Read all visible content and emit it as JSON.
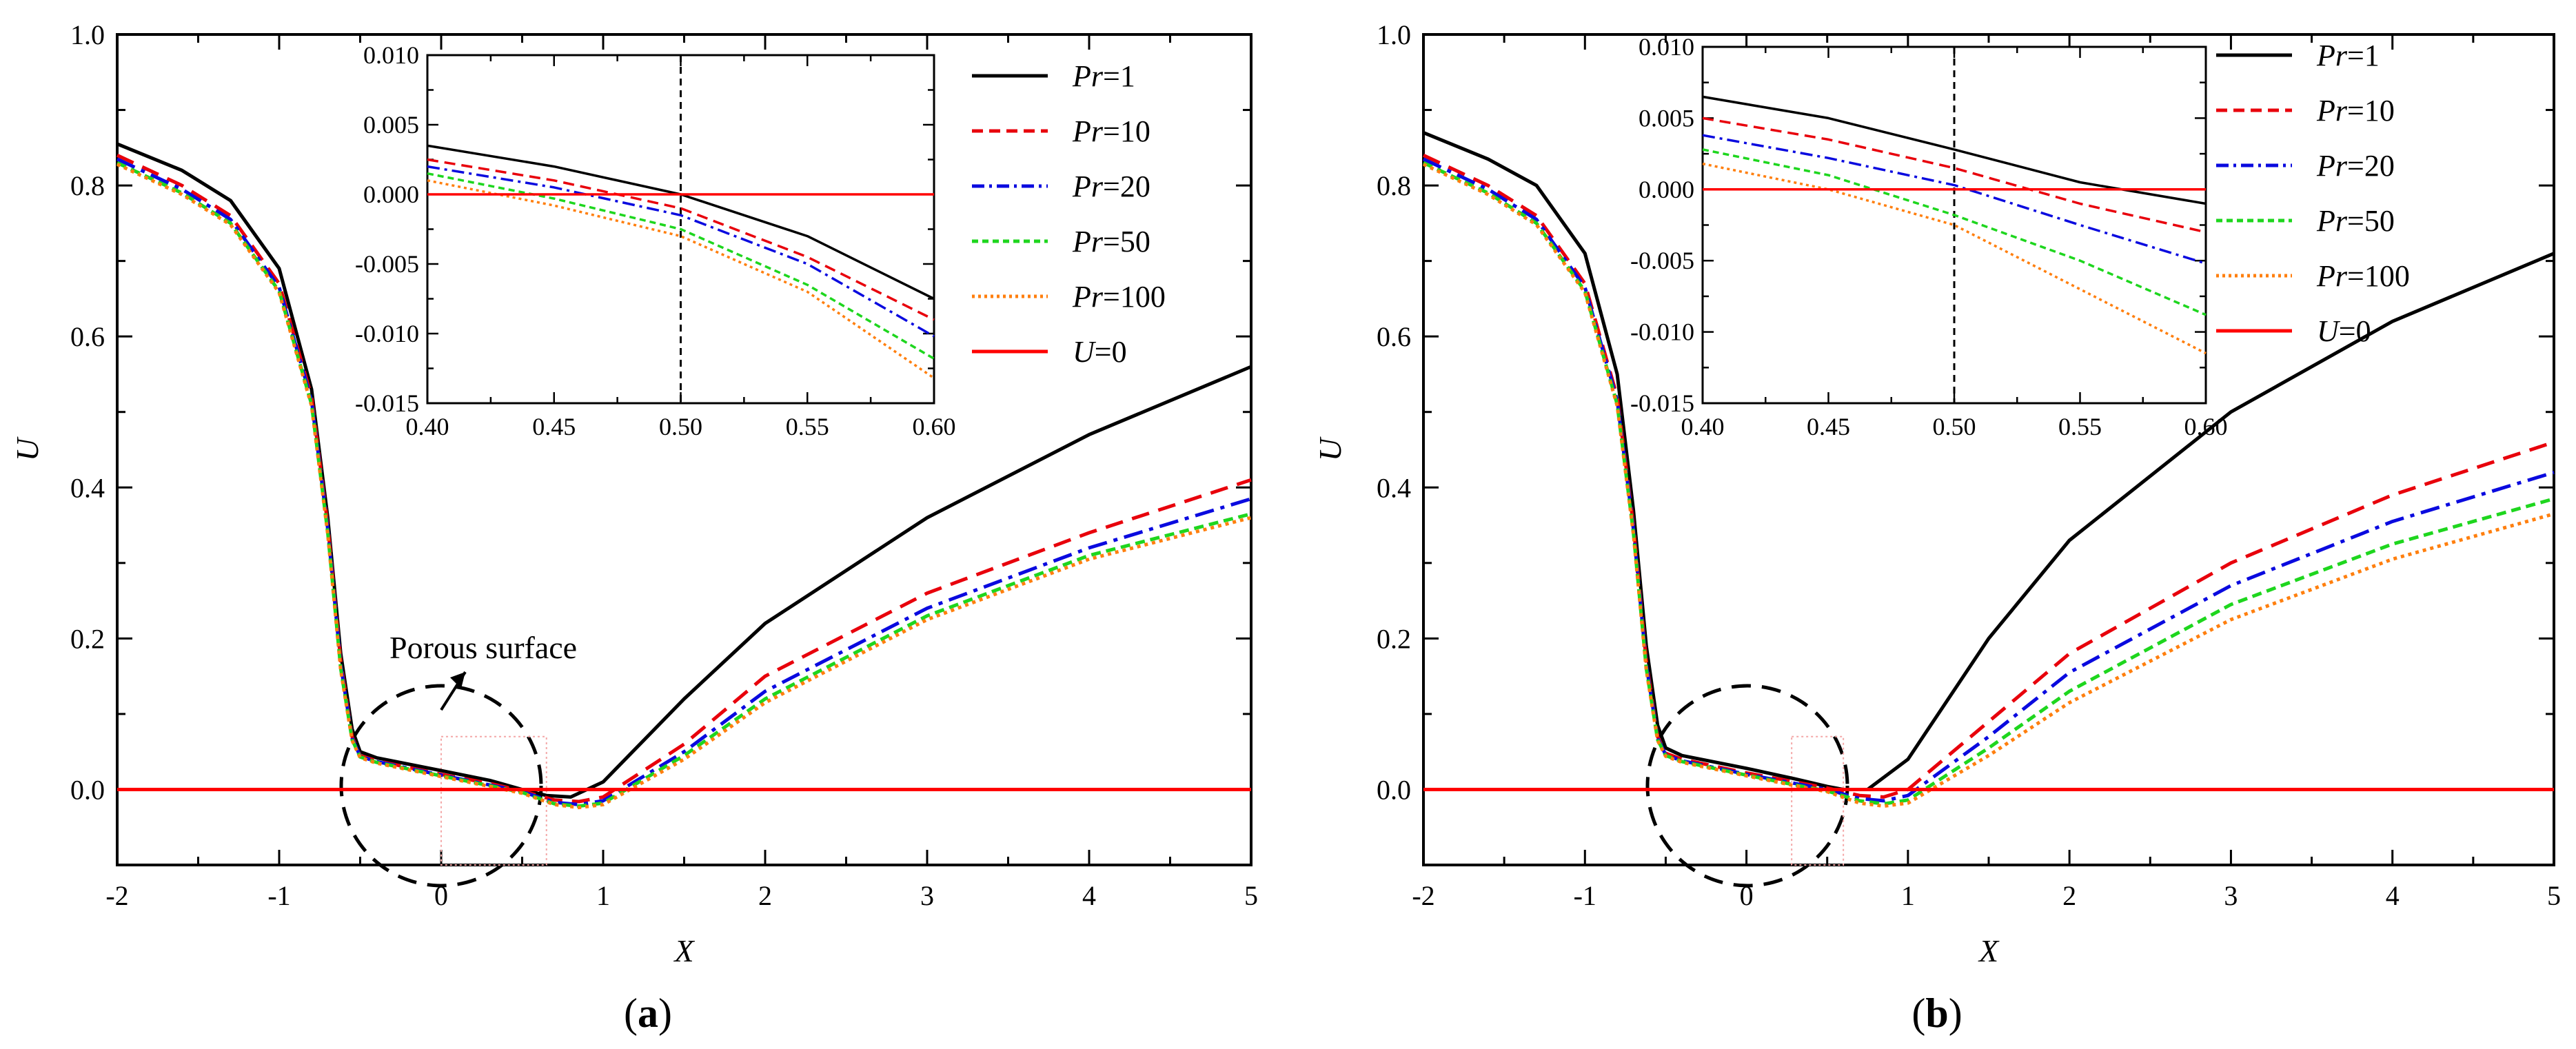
{
  "chart_data": [
    {
      "panel": "a",
      "type": "line",
      "panel_label": {
        "open": "(",
        "letter": "a",
        "close": ")"
      },
      "xlabel": "X",
      "ylabel": "U",
      "xlim": [
        -2,
        5
      ],
      "ylim": [
        -0.1,
        1.0
      ],
      "xticks": [
        "-2",
        "-1",
        "0",
        "1",
        "2",
        "3",
        "4",
        "5"
      ],
      "yticks": [
        "0.0",
        "0.2",
        "0.4",
        "0.6",
        "0.8",
        "1.0"
      ],
      "annotation": "Porous surface",
      "legend": {
        "position": "top-right",
        "entries": [
          {
            "prefix": "Pr",
            "suffix": "=1"
          },
          {
            "prefix": "Pr",
            "suffix": "=10"
          },
          {
            "prefix": "Pr",
            "suffix": "=20"
          },
          {
            "prefix": "Pr",
            "suffix": "=50"
          },
          {
            "prefix": "Pr",
            "suffix": "=100"
          },
          {
            "prefix": "U",
            "suffix": "=0"
          }
        ]
      },
      "series": [
        {
          "name": "Pr=1",
          "color": "#000000",
          "dash": "solid",
          "x": [
            -2,
            -1.6,
            -1.3,
            -1.0,
            -0.8,
            -0.7,
            -0.62,
            -0.55,
            -0.5,
            -0.4,
            0,
            0.3,
            0.5,
            0.65,
            0.8,
            1.0,
            1.5,
            2,
            3,
            4,
            5
          ],
          "y": [
            0.855,
            0.82,
            0.78,
            0.69,
            0.53,
            0.36,
            0.18,
            0.08,
            0.05,
            0.042,
            0.025,
            0.012,
            0.0,
            -0.008,
            -0.01,
            0.01,
            0.12,
            0.22,
            0.36,
            0.47,
            0.56
          ]
        },
        {
          "name": "Pr=10",
          "color": "#e8000b",
          "dash": "dashed",
          "x": [
            -2,
            -1.6,
            -1.3,
            -1.0,
            -0.8,
            -0.7,
            -0.62,
            -0.55,
            -0.5,
            -0.4,
            0,
            0.3,
            0.5,
            0.7,
            0.85,
            1.0,
            1.5,
            2,
            3,
            4,
            5
          ],
          "y": [
            0.84,
            0.8,
            0.76,
            0.67,
            0.52,
            0.35,
            0.17,
            0.07,
            0.045,
            0.038,
            0.02,
            0.008,
            -0.002,
            -0.014,
            -0.016,
            -0.01,
            0.06,
            0.15,
            0.26,
            0.34,
            0.41
          ]
        },
        {
          "name": "Pr=20",
          "color": "#0a0adf",
          "dash": "dashdot",
          "x": [
            -2,
            -1.6,
            -1.3,
            -1.0,
            -0.8,
            -0.7,
            -0.62,
            -0.55,
            -0.5,
            -0.4,
            0,
            0.3,
            0.5,
            0.7,
            0.85,
            1.0,
            1.5,
            2,
            3,
            4,
            5
          ],
          "y": [
            0.835,
            0.795,
            0.755,
            0.665,
            0.515,
            0.345,
            0.165,
            0.068,
            0.044,
            0.037,
            0.019,
            0.006,
            -0.003,
            -0.017,
            -0.02,
            -0.015,
            0.05,
            0.13,
            0.24,
            0.32,
            0.385
          ]
        },
        {
          "name": "Pr=50",
          "color": "#1ed61e",
          "dash": "dotted-dash",
          "x": [
            -2,
            -1.6,
            -1.3,
            -1.0,
            -0.8,
            -0.7,
            -0.62,
            -0.55,
            -0.5,
            -0.4,
            0,
            0.3,
            0.5,
            0.7,
            0.85,
            1.0,
            1.5,
            2,
            3,
            4,
            5
          ],
          "y": [
            0.83,
            0.79,
            0.75,
            0.66,
            0.51,
            0.34,
            0.16,
            0.066,
            0.043,
            0.036,
            0.018,
            0.005,
            -0.004,
            -0.019,
            -0.022,
            -0.018,
            0.045,
            0.12,
            0.23,
            0.31,
            0.365
          ]
        },
        {
          "name": "Pr=100",
          "color": "#ff7f0e",
          "dash": "dotted",
          "x": [
            -2,
            -1.6,
            -1.3,
            -1.0,
            -0.8,
            -0.7,
            -0.62,
            -0.55,
            -0.5,
            -0.4,
            0,
            0.3,
            0.5,
            0.7,
            0.85,
            1.0,
            1.5,
            2,
            3,
            4,
            5
          ],
          "y": [
            0.828,
            0.788,
            0.748,
            0.658,
            0.508,
            0.338,
            0.158,
            0.065,
            0.042,
            0.035,
            0.017,
            0.004,
            -0.005,
            -0.02,
            -0.024,
            -0.02,
            0.04,
            0.115,
            0.225,
            0.305,
            0.36
          ]
        },
        {
          "name": "U=0",
          "color": "#ff0000",
          "dash": "solid",
          "x": [
            -2,
            5
          ],
          "y": [
            0,
            0
          ]
        }
      ],
      "inset": {
        "xlim": [
          0.4,
          0.6
        ],
        "ylim": [
          -0.015,
          0.01
        ],
        "xticks": [
          "0.40",
          "0.45",
          "0.50",
          "0.55",
          "0.60"
        ],
        "yticks": [
          "0.010",
          "0.005",
          "0.000",
          "-0.005",
          "-0.010",
          "-0.015"
        ],
        "vline_x": 0.5,
        "series": [
          {
            "name": "Pr=1",
            "x": [
              0.4,
              0.45,
              0.5,
              0.55,
              0.6
            ],
            "y": [
              0.0035,
              0.002,
              0.0,
              -0.003,
              -0.0075
            ]
          },
          {
            "name": "Pr=10",
            "x": [
              0.4,
              0.45,
              0.5,
              0.55,
              0.6
            ],
            "y": [
              0.0025,
              0.001,
              -0.001,
              -0.0045,
              -0.009
            ]
          },
          {
            "name": "Pr=20",
            "x": [
              0.4,
              0.45,
              0.5,
              0.55,
              0.6
            ],
            "y": [
              0.002,
              0.0005,
              -0.0015,
              -0.005,
              -0.0102
            ]
          },
          {
            "name": "Pr=50",
            "x": [
              0.4,
              0.45,
              0.5,
              0.55,
              0.6
            ],
            "y": [
              0.0015,
              -0.0003,
              -0.0025,
              -0.0065,
              -0.0118
            ]
          },
          {
            "name": "Pr=100",
            "x": [
              0.4,
              0.45,
              0.5,
              0.55,
              0.6
            ],
            "y": [
              0.001,
              -0.0008,
              -0.003,
              -0.007,
              -0.0132
            ]
          },
          {
            "name": "U=0",
            "x": [
              0.4,
              0.6
            ],
            "y": [
              0,
              0
            ]
          }
        ]
      }
    },
    {
      "panel": "b",
      "type": "line",
      "panel_label": {
        "open": "(",
        "letter": "b",
        "close": ")"
      },
      "xlabel": "X",
      "ylabel": "U",
      "xlim": [
        -2,
        5
      ],
      "ylim": [
        -0.1,
        1.0
      ],
      "xticks": [
        "-2",
        "-1",
        "0",
        "1",
        "2",
        "3",
        "4",
        "5"
      ],
      "yticks": [
        "0.0",
        "0.2",
        "0.4",
        "0.6",
        "0.8",
        "1.0"
      ],
      "legend": {
        "position": "top-right",
        "entries": [
          {
            "prefix": "Pr",
            "suffix": "=1"
          },
          {
            "prefix": "Pr",
            "suffix": "=10"
          },
          {
            "prefix": "Pr",
            "suffix": "=20"
          },
          {
            "prefix": "Pr",
            "suffix": "=50"
          },
          {
            "prefix": "Pr",
            "suffix": "=100"
          },
          {
            "prefix": "U",
            "suffix": "=0"
          }
        ]
      },
      "series": [
        {
          "name": "Pr=1",
          "color": "#000000",
          "dash": "solid",
          "x": [
            -2,
            -1.6,
            -1.3,
            -1.0,
            -0.8,
            -0.7,
            -0.62,
            -0.55,
            -0.5,
            -0.4,
            0,
            0.3,
            0.5,
            0.6,
            0.75,
            1.0,
            1.5,
            2,
            3,
            4,
            5
          ],
          "y": [
            0.87,
            0.835,
            0.8,
            0.71,
            0.55,
            0.37,
            0.19,
            0.085,
            0.055,
            0.045,
            0.028,
            0.014,
            0.004,
            0.0,
            0.0,
            0.04,
            0.2,
            0.33,
            0.5,
            0.62,
            0.71
          ]
        },
        {
          "name": "Pr=10",
          "color": "#e8000b",
          "dash": "dashed",
          "x": [
            -2,
            -1.6,
            -1.3,
            -1.0,
            -0.8,
            -0.7,
            -0.62,
            -0.55,
            -0.5,
            -0.4,
            0,
            0.3,
            0.5,
            0.7,
            0.85,
            1.0,
            1.5,
            2,
            3,
            4,
            5
          ],
          "y": [
            0.84,
            0.8,
            0.76,
            0.67,
            0.52,
            0.35,
            0.17,
            0.07,
            0.048,
            0.04,
            0.022,
            0.01,
            0.002,
            -0.008,
            -0.01,
            0.0,
            0.09,
            0.18,
            0.3,
            0.39,
            0.46
          ]
        },
        {
          "name": "Pr=20",
          "color": "#0a0adf",
          "dash": "dashdot",
          "x": [
            -2,
            -1.6,
            -1.3,
            -1.0,
            -0.8,
            -0.7,
            -0.62,
            -0.55,
            -0.5,
            -0.4,
            0,
            0.3,
            0.5,
            0.7,
            0.85,
            1.0,
            1.5,
            2,
            3,
            4,
            5
          ],
          "y": [
            0.835,
            0.795,
            0.755,
            0.665,
            0.515,
            0.345,
            0.165,
            0.068,
            0.046,
            0.038,
            0.02,
            0.008,
            0.0,
            -0.012,
            -0.015,
            -0.008,
            0.07,
            0.155,
            0.27,
            0.355,
            0.42
          ]
        },
        {
          "name": "Pr=50",
          "color": "#1ed61e",
          "dash": "dotted-dash",
          "x": [
            -2,
            -1.6,
            -1.3,
            -1.0,
            -0.8,
            -0.7,
            -0.62,
            -0.55,
            -0.5,
            -0.4,
            0,
            0.3,
            0.5,
            0.7,
            0.85,
            1.0,
            1.5,
            2,
            3,
            4,
            5
          ],
          "y": [
            0.83,
            0.79,
            0.75,
            0.66,
            0.51,
            0.34,
            0.16,
            0.066,
            0.045,
            0.037,
            0.019,
            0.006,
            -0.002,
            -0.015,
            -0.019,
            -0.014,
            0.055,
            0.13,
            0.245,
            0.325,
            0.385
          ]
        },
        {
          "name": "Pr=100",
          "color": "#ff7f0e",
          "dash": "dotted",
          "x": [
            -2,
            -1.6,
            -1.3,
            -1.0,
            -0.8,
            -0.7,
            -0.62,
            -0.55,
            -0.5,
            -0.4,
            0,
            0.3,
            0.5,
            0.7,
            0.85,
            1.0,
            1.5,
            2,
            3,
            4,
            5
          ],
          "y": [
            0.828,
            0.788,
            0.748,
            0.658,
            0.508,
            0.338,
            0.158,
            0.065,
            0.044,
            0.036,
            0.018,
            0.005,
            -0.003,
            -0.018,
            -0.022,
            -0.018,
            0.045,
            0.115,
            0.225,
            0.305,
            0.365
          ]
        },
        {
          "name": "U=0",
          "color": "#ff0000",
          "dash": "solid",
          "x": [
            -2,
            5
          ],
          "y": [
            0,
            0
          ]
        }
      ],
      "inset": {
        "xlim": [
          0.4,
          0.6
        ],
        "ylim": [
          -0.015,
          0.01
        ],
        "xticks": [
          "0.40",
          "0.45",
          "0.50",
          "0.55",
          "0.60"
        ],
        "yticks": [
          "0.010",
          "0.005",
          "0.000",
          "-0.005",
          "-0.010",
          "-0.015"
        ],
        "vline_x": 0.5,
        "series": [
          {
            "name": "Pr=1",
            "x": [
              0.4,
              0.45,
              0.5,
              0.55,
              0.6
            ],
            "y": [
              0.0065,
              0.005,
              0.0028,
              0.0005,
              -0.001
            ]
          },
          {
            "name": "Pr=10",
            "x": [
              0.4,
              0.45,
              0.5,
              0.55,
              0.6
            ],
            "y": [
              0.005,
              0.0035,
              0.0015,
              -0.001,
              -0.003
            ]
          },
          {
            "name": "Pr=20",
            "x": [
              0.4,
              0.45,
              0.5,
              0.55,
              0.6
            ],
            "y": [
              0.0038,
              0.0022,
              0.0003,
              -0.0025,
              -0.0052
            ]
          },
          {
            "name": "Pr=50",
            "x": [
              0.4,
              0.45,
              0.5,
              0.55,
              0.6
            ],
            "y": [
              0.0028,
              0.001,
              -0.0018,
              -0.005,
              -0.0088
            ]
          },
          {
            "name": "Pr=100",
            "x": [
              0.4,
              0.45,
              0.5,
              0.55,
              0.6
            ],
            "y": [
              0.0018,
              0.0,
              -0.0025,
              -0.007,
              -0.0115
            ]
          },
          {
            "name": "U=0",
            "x": [
              0.4,
              0.6
            ],
            "y": [
              0,
              0
            ]
          }
        ]
      }
    }
  ]
}
